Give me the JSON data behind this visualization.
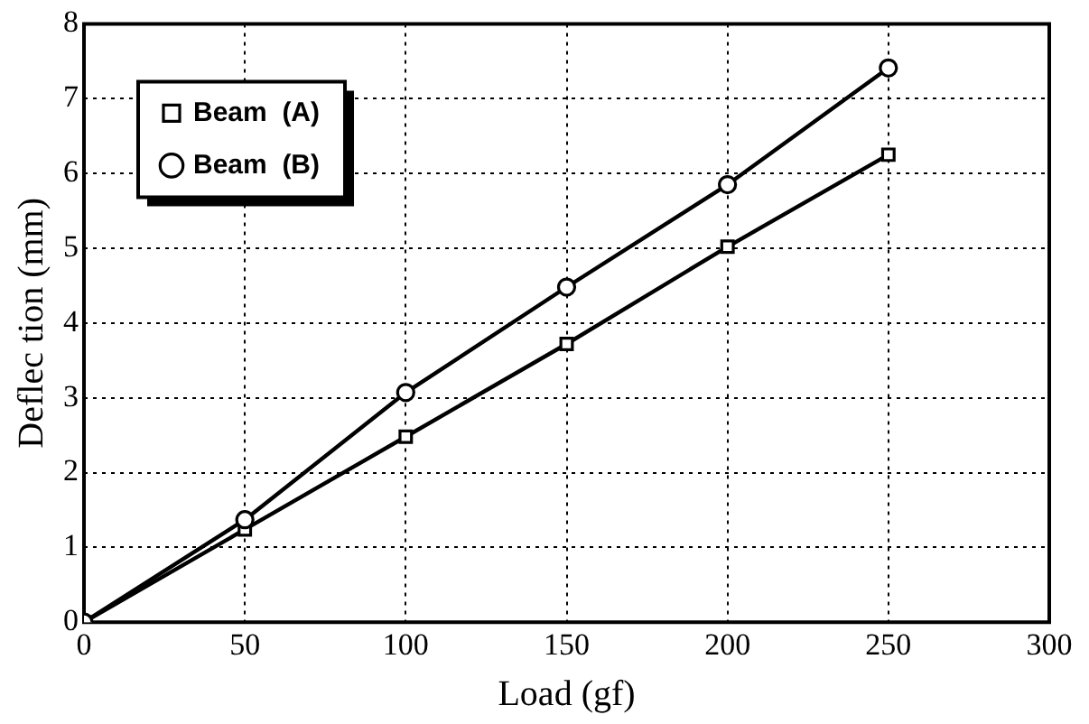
{
  "chart_data": {
    "type": "line",
    "xlabel": "Load (gf)",
    "ylabel": "Deflec tion (mm)",
    "x": [
      0,
      50,
      100,
      150,
      200,
      250
    ],
    "series": [
      {
        "name": "Beam  (A)",
        "color": "#000000",
        "marker": "square",
        "values": [
          0,
          1.24,
          2.48,
          3.72,
          5.02,
          6.25
        ]
      },
      {
        "name": "Beam  (B)",
        "color": "#000000",
        "marker": "circle",
        "values": [
          0,
          1.37,
          3.07,
          4.48,
          5.85,
          7.41
        ]
      }
    ],
    "xlim": [
      0,
      300
    ],
    "xticks": [
      0,
      50,
      100,
      150,
      200,
      250,
      300
    ],
    "ylim": [
      0,
      8
    ],
    "yticks": [
      0,
      1,
      2,
      3,
      4,
      5,
      6,
      7,
      8
    ],
    "grid": true,
    "legend": "top left",
    "line_style": "solid"
  }
}
